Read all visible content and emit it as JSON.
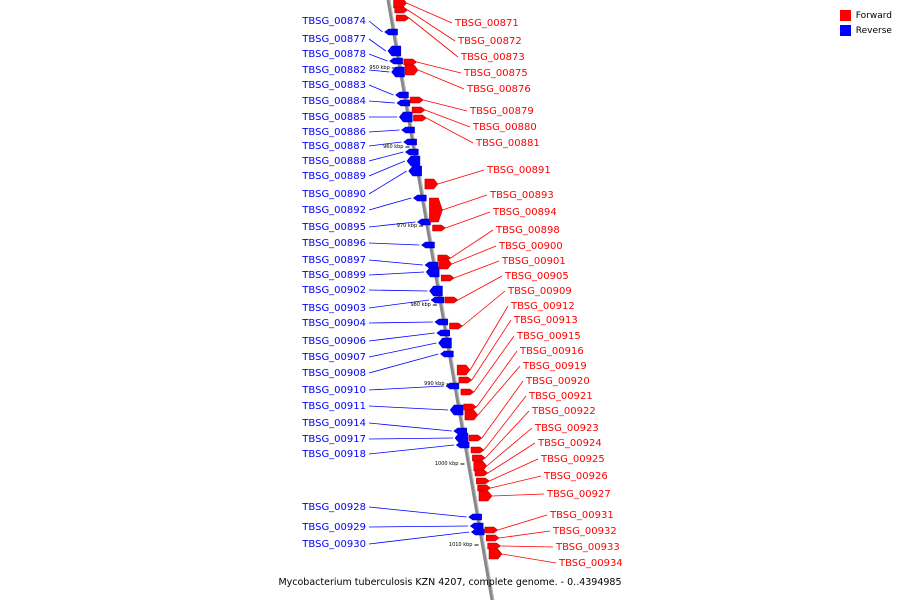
{
  "colors": {
    "forward": "#ff0000",
    "reverse": "#0000ff",
    "axis": "#888888"
  },
  "legend": [
    {
      "label": "Forward",
      "color": "#ff0000"
    },
    {
      "label": "Reverse",
      "color": "#0000ff"
    }
  ],
  "caption": "Mycobacterium tuberculosis KZN 4207, complete genome. - 0..4394985",
  "ticks": [
    "950 kbp",
    "960 kbp",
    "970 kbp",
    "980 kbp",
    "990 kbp",
    "1000 kbp",
    "1010 kbp"
  ],
  "reverse_genes": [
    "TBSG_00874",
    "TBSG_00877",
    "TBSG_00878",
    "TBSG_00882",
    "TBSG_00883",
    "TBSG_00884",
    "TBSG_00885",
    "TBSG_00886",
    "TBSG_00887",
    "TBSG_00888",
    "TBSG_00889",
    "TBSG_00890",
    "TBSG_00892",
    "TBSG_00895",
    "TBSG_00896",
    "TBSG_00897",
    "TBSG_00899",
    "TBSG_00902",
    "TBSG_00903",
    "TBSG_00904",
    "TBSG_00906",
    "TBSG_00907",
    "TBSG_00908",
    "TBSG_00910",
    "TBSG_00911",
    "TBSG_00914",
    "TBSG_00917",
    "TBSG_00918",
    "TBSG_00928",
    "TBSG_00929",
    "TBSG_00930"
  ],
  "forward_genes": [
    "TBSG_00871",
    "TBSG_00872",
    "TBSG_00873",
    "TBSG_00875",
    "TBSG_00876",
    "TBSG_00879",
    "TBSG_00880",
    "TBSG_00881",
    "TBSG_00891",
    "TBSG_00893",
    "TBSG_00894",
    "TBSG_00898",
    "TBSG_00900",
    "TBSG_00901",
    "TBSG_00905",
    "TBSG_00909",
    "TBSG_00912",
    "TBSG_00913",
    "TBSG_00915",
    "TBSG_00916",
    "TBSG_00919",
    "TBSG_00920",
    "TBSG_00921",
    "TBSG_00922",
    "TBSG_00923",
    "TBSG_00924",
    "TBSG_00925",
    "TBSG_00926",
    "TBSG_00927",
    "TBSG_00931",
    "TBSG_00932",
    "TBSG_00933",
    "TBSG_00934"
  ]
}
